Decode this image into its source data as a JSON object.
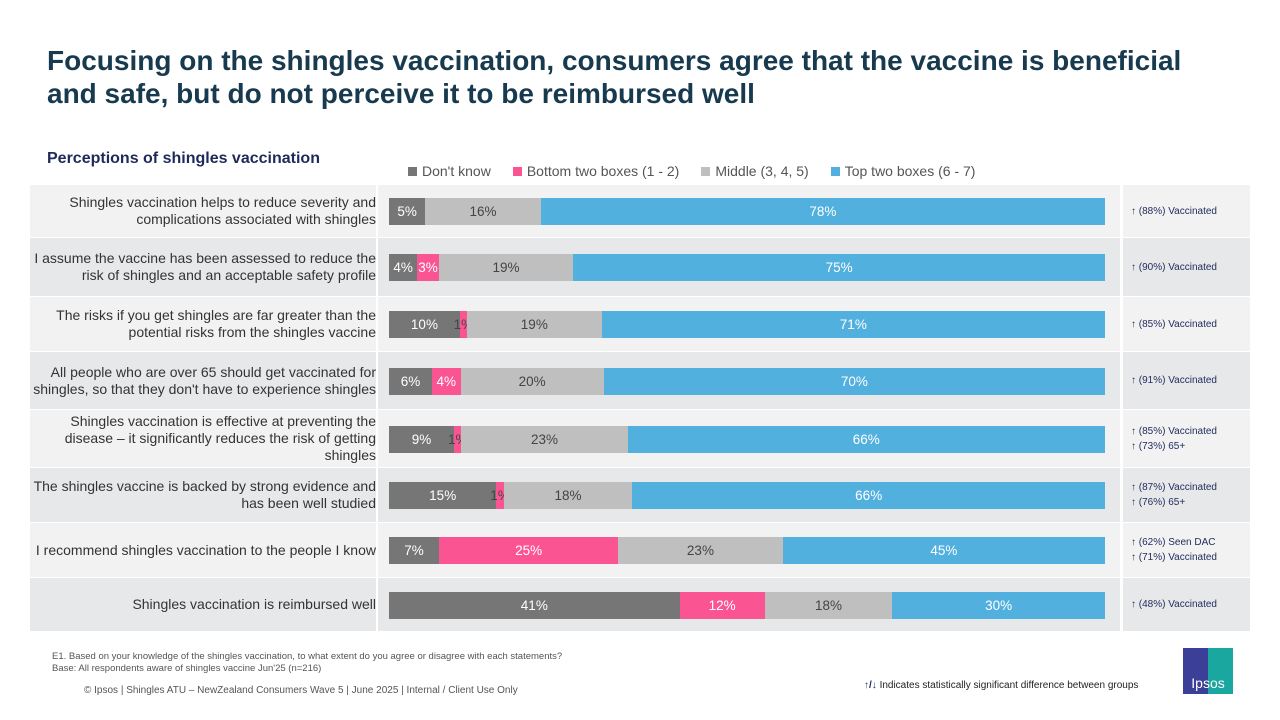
{
  "title": "Focusing on the shingles vaccination, consumers agree that the vaccine is beneficial and safe, but do not perceive it to be reimbursed well",
  "chart_data": {
    "type": "bar",
    "orientation": "horizontal-stacked-100",
    "subtitle": "Perceptions of shingles vaccination",
    "legend_position": "top",
    "series": [
      {
        "name": "Don't know",
        "color": "#767676",
        "values": [
          5,
          4,
          10,
          6,
          9,
          15,
          7,
          41
        ]
      },
      {
        "name": "Bottom two boxes (1 - 2)",
        "color": "#fa5592",
        "values": [
          null,
          3,
          1,
          4,
          1,
          1,
          25,
          12
        ]
      },
      {
        "name": "Middle (3, 4, 5)",
        "color": "#bfbfbf",
        "values": [
          16,
          19,
          19,
          20,
          23,
          18,
          23,
          18
        ]
      },
      {
        "name": "Top two boxes (6 - 7)",
        "color": "#52b0de",
        "values": [
          78,
          75,
          71,
          70,
          66,
          66,
          45,
          30
        ]
      }
    ],
    "categories": [
      "Shingles vaccination helps to reduce severity and complications associated with shingles",
      "I assume the vaccine has been assessed to reduce the risk of shingles and an acceptable safety profile",
      "The risks if you get shingles are far greater than the potential risks from the shingles vaccine",
      "All people who are over 65 should get vaccinated for shingles, so that they don't have to experience shingles",
      "Shingles vaccination is effective at preventing the disease – it significantly reduces the risk of getting shingles",
      "The shingles vaccine is backed by strong evidence and has been well studied",
      "I recommend shingles vaccination to the people I know",
      "Shingles vaccination is reimbursed well"
    ],
    "significance": [
      [
        "(88%) Vaccinated"
      ],
      [
        "(90%) Vaccinated"
      ],
      [
        "(85%) Vaccinated"
      ],
      [
        "(91%) Vaccinated"
      ],
      [
        "(85%) Vaccinated",
        "(73%) 65+"
      ],
      [
        "(87%) Vaccinated",
        "(76%) 65+"
      ],
      [
        "(62%) Seen DAC",
        "(71%) Vaccinated"
      ],
      [
        "(48%) Vaccinated"
      ]
    ],
    "sig_icon": "arrow-up-icon"
  },
  "footer": {
    "question": "E1. Based on your knowledge of the shingles vaccination, to what extent do you agree or disagree with each statements?",
    "base": "Base: All respondents aware of shingles vaccine Jun'25 (n=216)",
    "copyright": "© Ipsos | Shingles ATU – NewZealand Consumers Wave 5 | June 2025  | Internal / Client Use Only",
    "sig_note": "Indicates statistically significant difference between groups",
    "logo": "Ipsos"
  }
}
